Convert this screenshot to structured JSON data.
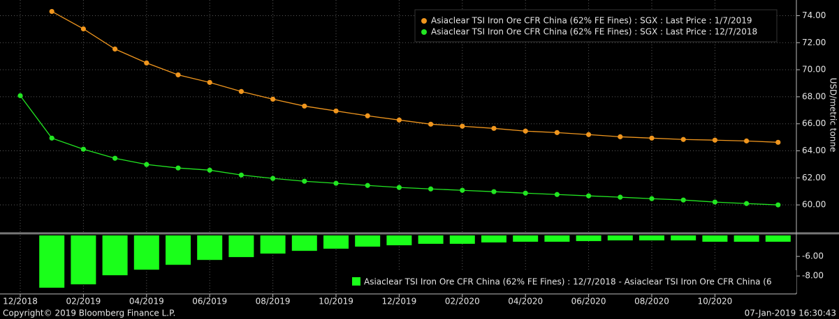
{
  "chart_data": [
    {
      "type": "line",
      "categories": [
        "12/2018",
        null,
        "02/2019",
        null,
        "04/2019",
        null,
        "06/2019",
        null,
        "08/2019",
        null,
        "10/2019",
        null,
        "12/2019",
        null,
        "02/2020",
        null,
        "04/2020",
        null,
        "06/2020",
        null,
        "08/2020",
        null,
        "10/2020",
        null,
        null
      ],
      "y_label": "USD/metric tonne",
      "ylim": [
        58.0,
        74.9
      ],
      "yticks": [
        {
          "value": 60,
          "label": "60.00"
        },
        {
          "value": 62,
          "label": "62.00"
        },
        {
          "value": 64,
          "label": "64.00"
        },
        {
          "value": 66,
          "label": "66.00"
        },
        {
          "value": 68,
          "label": "68.00"
        },
        {
          "value": 70,
          "label": "70.00"
        },
        {
          "value": 72,
          "label": "72.00"
        },
        {
          "value": 74,
          "label": "74.00"
        }
      ],
      "grid": true,
      "series": [
        {
          "name": "Asiaclear TSI Iron Ore CFR China (62% FE Fines) : SGX : Last Price : 1/7/2019",
          "color": "#f0961e",
          "values": [
            null,
            74.31,
            73.02,
            71.53,
            70.5,
            69.62,
            69.06,
            68.39,
            67.82,
            67.31,
            66.95,
            66.59,
            66.28,
            65.97,
            65.82,
            65.66,
            65.46,
            65.35,
            65.2,
            65.04,
            64.94,
            64.84,
            64.79,
            64.73,
            64.63
          ]
        },
        {
          "name": "Asiaclear TSI Iron Ore CFR China (62% FE Fines) : SGX : Last Price : 12/7/2018",
          "color": "#22e622",
          "values": [
            68.08,
            64.94,
            64.12,
            63.45,
            62.99,
            62.73,
            62.57,
            62.21,
            61.96,
            61.75,
            61.6,
            61.44,
            61.29,
            61.18,
            61.08,
            60.98,
            60.87,
            60.77,
            60.67,
            60.57,
            60.46,
            60.36,
            60.21,
            60.1,
            60.0
          ]
        }
      ]
    },
    {
      "type": "bar",
      "ylim": [
        -9.7,
        -3.85
      ],
      "yticks": [
        {
          "value": -6,
          "label": "-6.00"
        },
        {
          "value": -8,
          "label": "-8.00"
        }
      ],
      "series": [
        {
          "name": "Asiaclear TSI Iron Ore CFR China (62% FE Fines) : 12/7/2018 - Asiaclear TSI Iron Ore CFR China (6",
          "color": "#1aff1a",
          "values": [
            null,
            -9.21,
            -8.86,
            -7.93,
            -7.36,
            -6.86,
            -6.36,
            -6.07,
            -5.71,
            -5.43,
            -5.21,
            -5.0,
            -4.86,
            -4.71,
            -4.71,
            -4.57,
            -4.5,
            -4.5,
            -4.43,
            -4.36,
            -4.36,
            -4.36,
            -4.5,
            -4.5,
            -4.5
          ]
        }
      ]
    }
  ],
  "footer": {
    "copyright": "Copyright© 2019 Bloomberg Finance L.P.",
    "timestamp": "07-Jan-2019 16:30:43"
  }
}
